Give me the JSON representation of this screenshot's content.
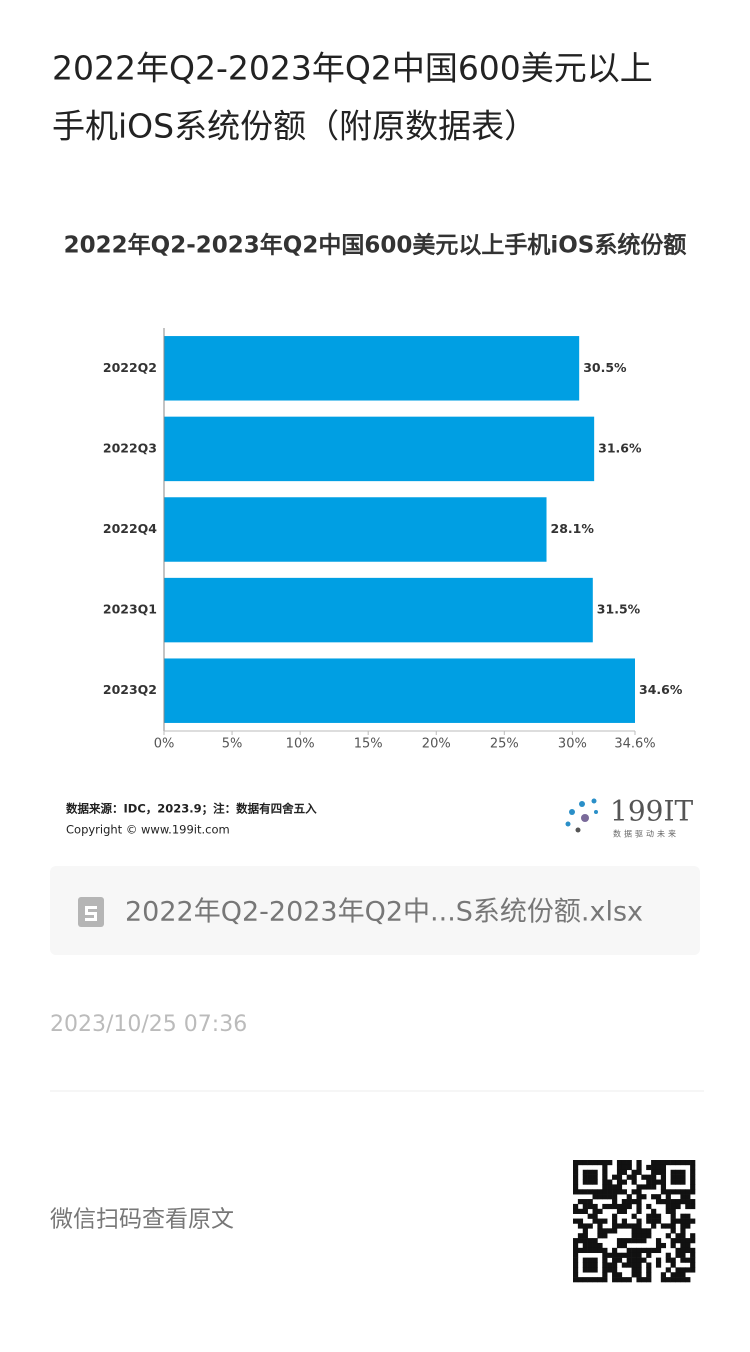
{
  "header": {
    "title_lines": [
      "2022年Q2-2023年Q2中国600美元以上",
      "手机iOS系统份额（附原数据表）"
    ]
  },
  "chart_data": {
    "type": "bar",
    "orientation": "horizontal",
    "title": "2022年Q2-2023年Q2中国600美元以上手机iOS系统份额",
    "categories": [
      "2022Q2",
      "2022Q3",
      "2022Q4",
      "2023Q1",
      "2023Q2"
    ],
    "values": [
      30.5,
      31.6,
      28.1,
      31.5,
      34.6
    ],
    "value_labels": [
      "30.5%",
      "31.6%",
      "28.1%",
      "31.5%",
      "34.6%"
    ],
    "color": "#009fe3",
    "xlim": [
      0,
      34.6
    ],
    "xticks": [
      {
        "value": 0,
        "label": "0%"
      },
      {
        "value": 5,
        "label": "5%"
      },
      {
        "value": 10,
        "label": "10%"
      },
      {
        "value": 15,
        "label": "15%"
      },
      {
        "value": 20,
        "label": "20%"
      },
      {
        "value": 25,
        "label": "25%"
      },
      {
        "value": 30,
        "label": "30%"
      },
      {
        "value": 34.6,
        "label": "34.6%"
      }
    ],
    "grid": false,
    "source": "数据来源：IDC，2023.9；注：数据有四舍五入",
    "copyright": "Copyright © www.199it.com"
  },
  "logo": {
    "name": "199IT",
    "slogan": "数据驱动未来"
  },
  "attachment": {
    "file_name": "2022年Q2-2023年Q2中...S系统份额.xlsx"
  },
  "date": "2023/10/25 07:36",
  "footer": {
    "text": "微信扫码查看原文"
  }
}
